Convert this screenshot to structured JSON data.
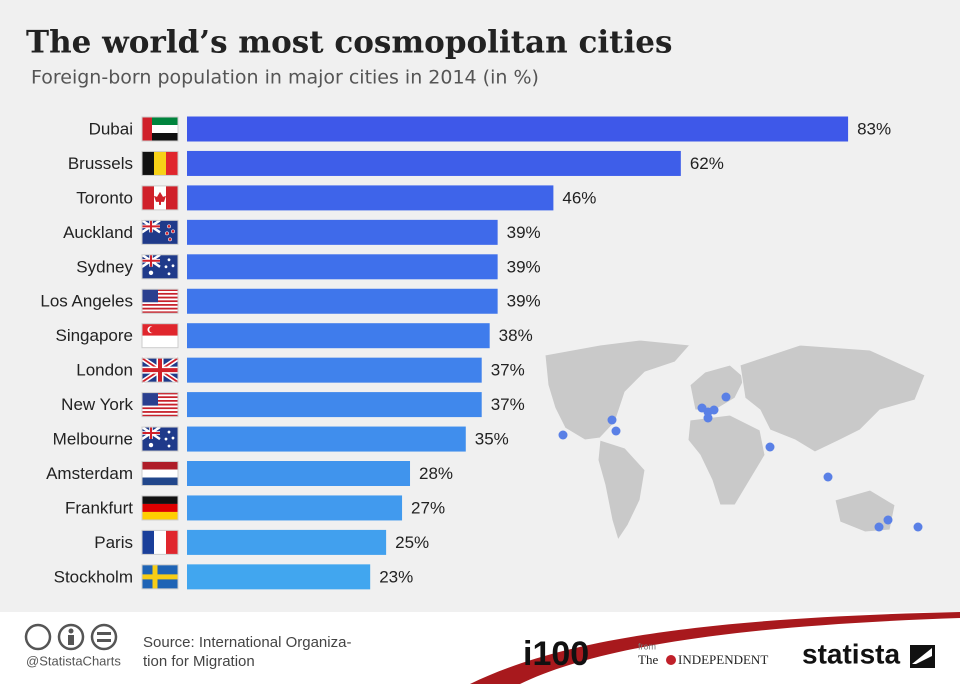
{
  "chart_data": {
    "type": "bar",
    "orientation": "horizontal",
    "title": "The world’s most cosmopolitan cities",
    "subtitle": "Foreign-born population in major cities in 2014 (in %)",
    "categories": [
      "Dubai",
      "Brussels",
      "Toronto",
      "Auckland",
      "Sydney",
      "Los Angeles",
      "Singapore",
      "London",
      "New York",
      "Melbourne",
      "Amsterdam",
      "Frankfurt",
      "Paris",
      "Stockholm"
    ],
    "values": [
      83,
      62,
      46,
      39,
      39,
      39,
      38,
      37,
      37,
      35,
      28,
      27,
      25,
      23
    ],
    "value_labels": [
      "83%",
      "62%",
      "46%",
      "39%",
      "39%",
      "39%",
      "38%",
      "37%",
      "37%",
      "35%",
      "28%",
      "27%",
      "25%",
      "23%"
    ],
    "colors": [
      "#3e58e9",
      "#3e5ee9",
      "#3e64ea",
      "#3f6aea",
      "#3f70eb",
      "#3f76eb",
      "#3f7cec",
      "#4082ec",
      "#4088ec",
      "#408eed",
      "#4094ed",
      "#419aee",
      "#41a0ee",
      "#41a6ef"
    ]
  },
  "footer": {
    "handle": "@StatistaCharts",
    "source": [
      "Source: International Organiza-",
      "tion for Migration"
    ],
    "partner": "i100",
    "partner_from": "from",
    "partner_prefix": "The",
    "partner_name": "INDEPENDENT",
    "brand": "statista"
  }
}
